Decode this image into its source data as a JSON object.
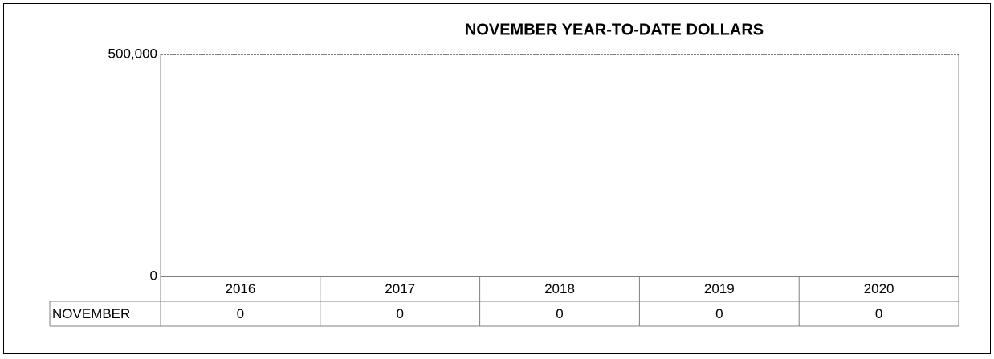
{
  "chart_data": {
    "type": "bar",
    "title": "NOVEMBER YEAR-TO-DATE DOLLARS",
    "categories": [
      "2016",
      "2017",
      "2018",
      "2019",
      "2020"
    ],
    "series": [
      {
        "name": "NOVEMBER",
        "color": "#4472c4",
        "values": [
          0,
          0,
          0,
          0,
          0
        ]
      }
    ],
    "ylim": [
      0,
      500000
    ],
    "yticks": [
      0,
      {
        "value": 500000,
        "label": "500,000"
      }
    ],
    "grid": true,
    "data_table": true
  }
}
